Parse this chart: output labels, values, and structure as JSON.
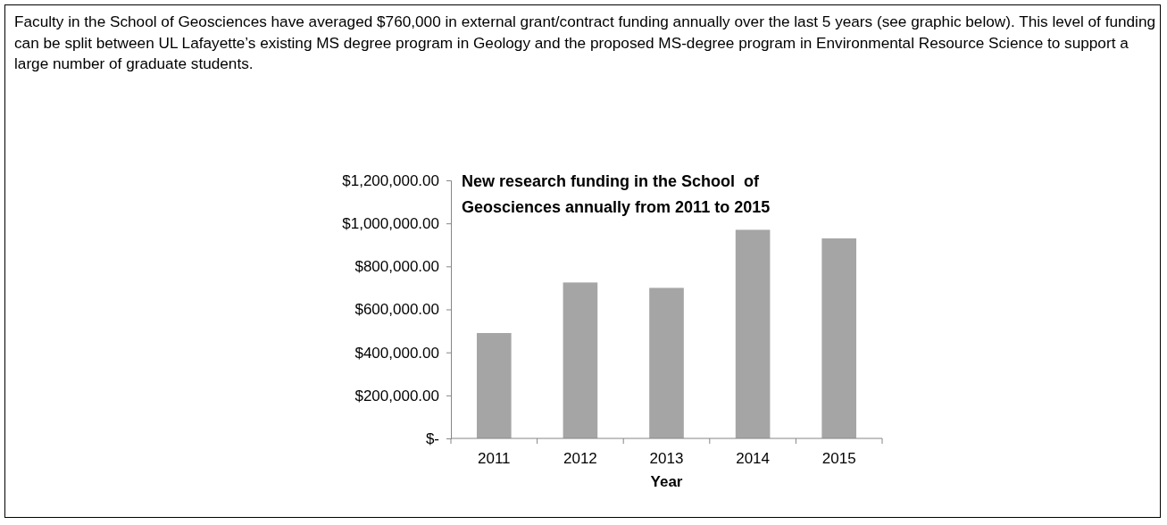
{
  "chart_data": {
    "type": "bar",
    "title": "New research funding in the School  of Geosciences annually from 2011 to 2015",
    "xlabel": "Year",
    "annotations": [
      "Faculty in the School of Geosciences have averaged $760,000 in external grant/contract funding annually over the last 5 years (see graphic below). This level of funding can be split between UL Lafayette’s existing MS degree program in Geology and the proposed MS-degree program in Environmental Resource Science to support a large number of graduate students."
    ],
    "categories": [
      "2011",
      "2012",
      "2013",
      "2014",
      "2015"
    ],
    "values": [
      490000,
      725000,
      700000,
      970000,
      930000
    ],
    "color": "#a5a5a5",
    "ylim": [
      0,
      1200000
    ],
    "yticks": [
      {
        "value": 0,
        "label": "$-"
      },
      {
        "value": 200000,
        "label": "$200,000.00"
      },
      {
        "value": 400000,
        "label": "$400,000.00"
      },
      {
        "value": 600000,
        "label": "$600,000.00"
      },
      {
        "value": 800000,
        "label": "$800,000.00"
      },
      {
        "value": 1000000,
        "label": "$1,000,000.00"
      },
      {
        "value": 1200000,
        "label": "$1,200,000.00"
      }
    ],
    "grid": false
  }
}
